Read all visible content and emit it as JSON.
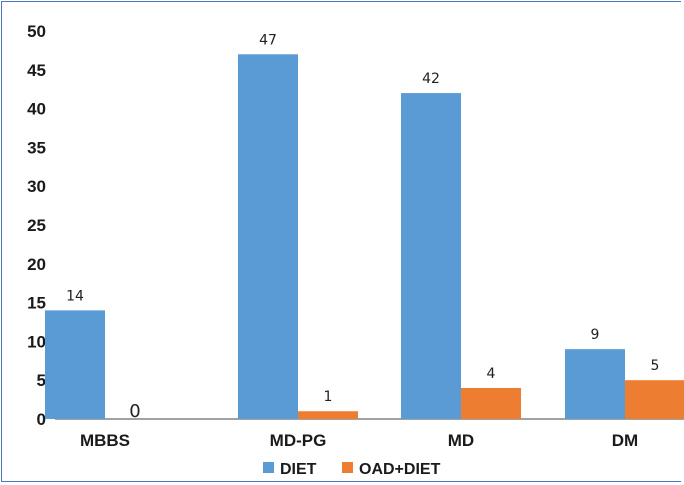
{
  "chart_data": {
    "type": "bar",
    "categories": [
      "MBBS",
      "MD-PG",
      "MD",
      "DM"
    ],
    "series": [
      {
        "name": "DIET",
        "values": [
          14,
          47,
          42,
          9
        ],
        "color": "#5b9bd5"
      },
      {
        "name": "OAD+DIET",
        "values": [
          0,
          1,
          4,
          5
        ],
        "color": "#ed7d31"
      }
    ],
    "ylim": [
      0,
      50
    ],
    "yticks": [
      0,
      5,
      10,
      15,
      20,
      25,
      30,
      35,
      40,
      45,
      50
    ],
    "grid": false,
    "legend": "bottom",
    "title": "",
    "xlabel": "",
    "ylabel": ""
  }
}
